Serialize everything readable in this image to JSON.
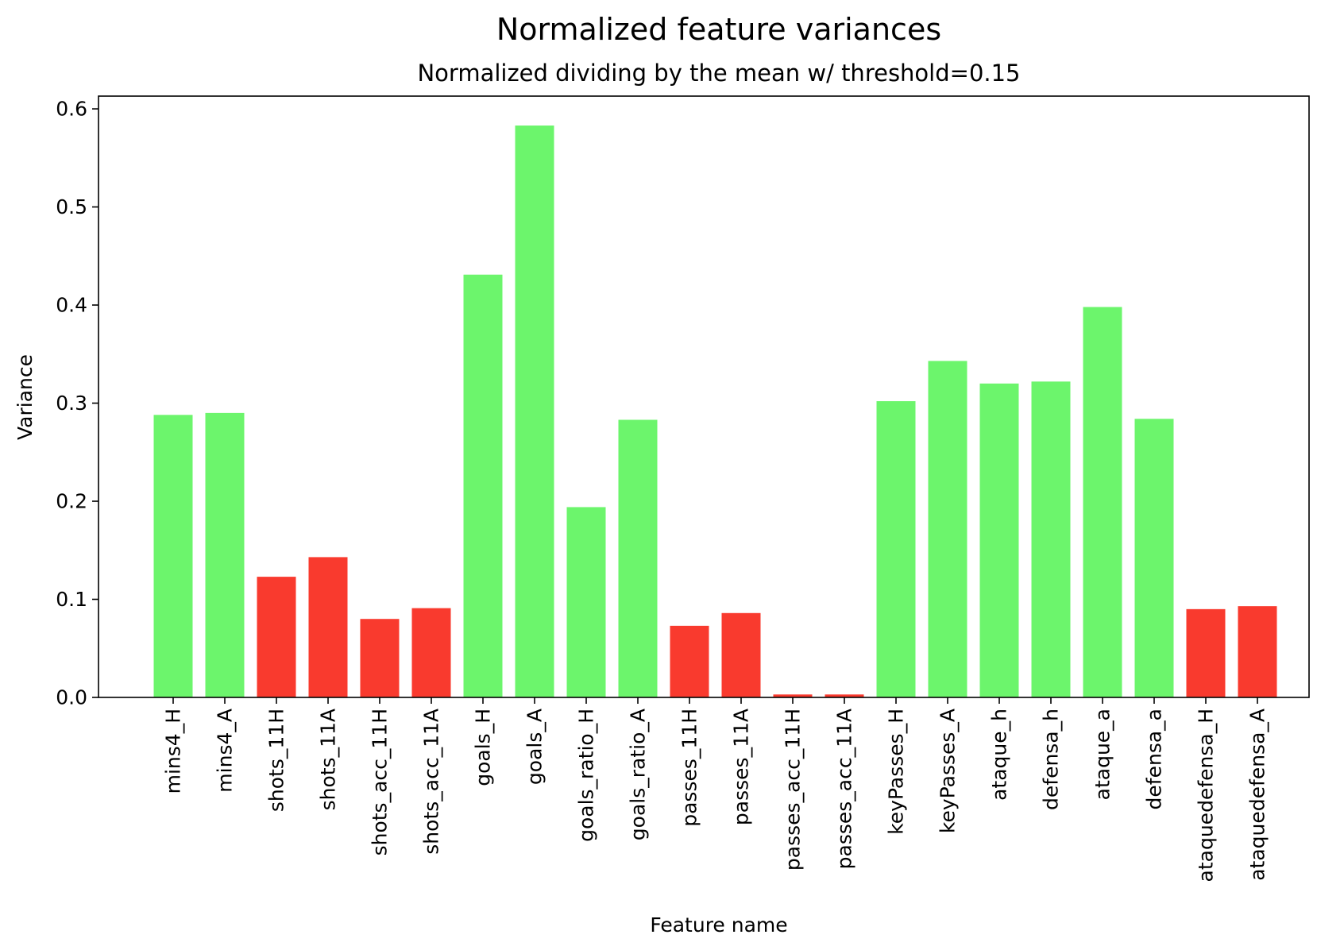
{
  "chart_data": {
    "type": "bar",
    "title": "Normalized feature variances",
    "subtitle": "Normalized dividing by the mean w/ threshold=0.15",
    "xlabel": "Feature name",
    "ylabel": "Variance",
    "ylim": [
      0,
      0.613
    ],
    "yticks": [
      "0.0",
      "0.1",
      "0.2",
      "0.3",
      "0.4",
      "0.5",
      "0.6"
    ],
    "threshold": 0.15,
    "colors": {
      "above_threshold": "#6cf56c",
      "below_threshold": "#f93a2e",
      "axis": "#000000"
    },
    "categories": [
      "mins4_H",
      "mins4_A",
      "shots_11H",
      "shots_11A",
      "shots_acc_11H",
      "shots_acc_11A",
      "goals_H",
      "goals_A",
      "goals_ratio_H",
      "goals_ratio_A",
      "passes_11H",
      "passes_11A",
      "passes_acc_11H",
      "passes_acc_11A",
      "keyPasses_H",
      "keyPasses_A",
      "ataque_h",
      "defensa_h",
      "ataque_a",
      "defensa_a",
      "ataquedefensa_H",
      "ataquedefensa_A"
    ],
    "values": [
      0.288,
      0.29,
      0.123,
      0.143,
      0.08,
      0.091,
      0.431,
      0.583,
      0.194,
      0.283,
      0.073,
      0.086,
      0.003,
      0.003,
      0.302,
      0.343,
      0.32,
      0.322,
      0.398,
      0.284,
      0.09,
      0.093
    ],
    "grid": false,
    "legend": "none"
  }
}
